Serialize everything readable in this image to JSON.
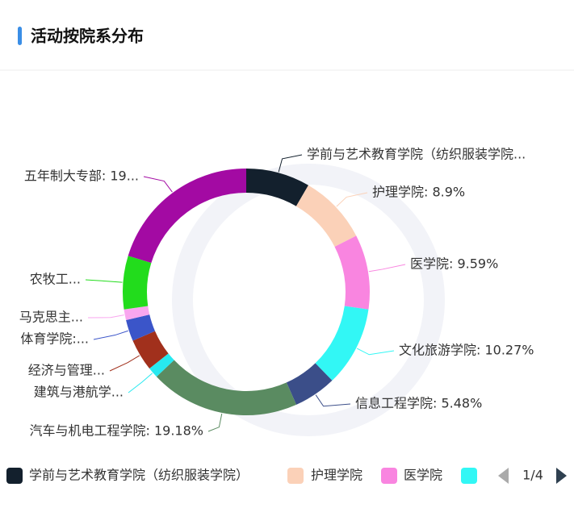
{
  "chart_data": {
    "type": "donut",
    "title": "活动按院系分布",
    "values": [
      8.22,
      8.9,
      9.59,
      10.27,
      5.48,
      19.18,
      1.37,
      4.11,
      2.74,
      1.37,
      6.85,
      19.86
    ],
    "colors": [
      "#13202d",
      "#fbd1b8",
      "#f985e0",
      "#32f7f5",
      "#3b4e89",
      "#5a8b61",
      "#27e9f0",
      "#a1301c",
      "#3b55c9",
      "#f9a6ef",
      "#22dc1c",
      "#a30aa3"
    ],
    "data_labels": [
      "学前与艺术教育学院（纺织服装学院...",
      "护理学院: 8.9%",
      "医学院: 9.59%",
      "文化旅游学院: 10.27%",
      "信息工程学院: 5.48%",
      "汽车与机电工程学院: 19.18%",
      "建筑与港航学...",
      "经济与管理...",
      "体育学院:...",
      "马克思主...",
      "农牧工...",
      "五年制大专部: 19..."
    ],
    "legend": {
      "items": [
        "学前与艺术教育学院（纺织服装学院）",
        "护理学院",
        "医学院"
      ],
      "page": "1/4"
    }
  }
}
